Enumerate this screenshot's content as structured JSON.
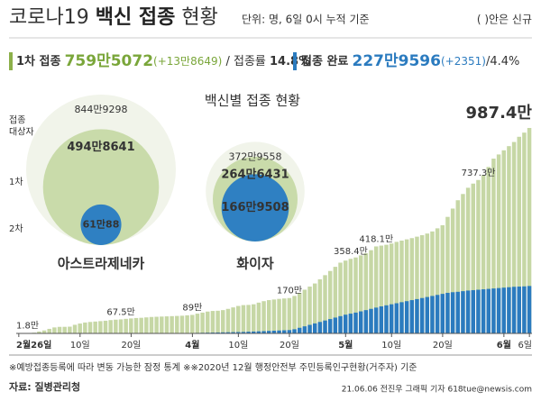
{
  "header": {
    "title": [
      "코로나19",
      "백신 접종",
      "현황"
    ],
    "unit": "단위: 명, 6일 0시 누적 기준",
    "note": "( )안은 신규",
    "first": {
      "label": "1차 접종",
      "value": "759만5072",
      "new": "(+13만8649)",
      "rate_label": "/ 접종률",
      "rate": "14.8%"
    },
    "second": {
      "label": "접종 완료",
      "value": "227만9596",
      "new": "(+2351)",
      "rate": "/4.4%"
    }
  },
  "bubbles": {
    "title": "백신별 접종 현황",
    "row_labels": [
      [
        "접종",
        "대상자"
      ],
      [
        "1차"
      ],
      [
        "2차"
      ]
    ],
    "colors": [
      "#f1f4ea",
      "#c9dbaa",
      "#2f80c2"
    ],
    "vaccines": [
      {
        "name": "아스트라제네카",
        "values": [
          8449298,
          4948641,
          610088
        ],
        "value_labels": [
          "844만9298",
          "494만8641",
          "61만88"
        ]
      },
      {
        "name": "화이자",
        "values": [
          3729558,
          2646431,
          1669508
        ],
        "value_labels": [
          "372만9558",
          "264만6431",
          "166만9508"
        ]
      }
    ]
  },
  "chart_data": {
    "type": "bar",
    "categories": [
      "2월26일",
      null,
      null,
      null,
      null,
      null,
      null,
      null,
      null,
      null,
      null,
      null,
      "10일",
      null,
      null,
      null,
      null,
      null,
      null,
      null,
      null,
      null,
      "20일",
      null,
      null,
      null,
      null,
      null,
      null,
      null,
      null,
      null,
      null,
      null,
      "4월",
      null,
      null,
      null,
      null,
      null,
      null,
      null,
      null,
      "10일",
      null,
      null,
      null,
      null,
      null,
      null,
      null,
      null,
      null,
      "20일",
      null,
      null,
      null,
      null,
      null,
      null,
      null,
      null,
      null,
      null,
      "5월",
      null,
      null,
      null,
      null,
      null,
      null,
      null,
      null,
      "10일",
      null,
      null,
      null,
      null,
      null,
      null,
      null,
      null,
      null,
      "20일",
      null,
      null,
      null,
      null,
      null,
      null,
      null,
      null,
      null,
      null,
      null,
      "6월",
      null,
      null,
      null,
      null,
      "6일"
    ],
    "series": [
      {
        "color": "#c6d7a5",
        "values": [
          1.8,
          2.1,
          2.2,
          3.5,
          9.1,
          14.3,
          21.9,
          28.8,
          31.5,
          31.6,
          32.4,
          41.4,
          47.4,
          52.4,
          55,
          57,
          59,
          61,
          64,
          66,
          67.5,
          70,
          72,
          74,
          75,
          77,
          79,
          80,
          81,
          82,
          83,
          84,
          85,
          87,
          89,
          95,
          100,
          105,
          108,
          109,
          112,
          118,
          125,
          132,
          136,
          137,
          140,
          148,
          155,
          160,
          163,
          166,
          168,
          170,
          180,
          195,
          210,
          225,
          240,
          260,
          280,
          300,
          320,
          340,
          350,
          358.4,
          365,
          375,
          385,
          400,
          418.1,
          422,
          426,
          432,
          440,
          446,
          452,
          458,
          465,
          472,
          480,
          490,
          505,
          520,
          560,
          600,
          640,
          670,
          700,
          720,
          737.3,
          760,
          800,
          840,
          860,
          880,
          900,
          920,
          945,
          965,
          987.4
        ],
        "value_labels": [
          "1.8만",
          null,
          null,
          null,
          null,
          null,
          null,
          null,
          null,
          null,
          null,
          null,
          null,
          null,
          null,
          null,
          null,
          null,
          null,
          null,
          "67.5만",
          null,
          null,
          null,
          null,
          null,
          null,
          null,
          null,
          null,
          null,
          null,
          null,
          null,
          "89만",
          null,
          null,
          null,
          null,
          null,
          null,
          null,
          null,
          null,
          null,
          null,
          null,
          null,
          null,
          null,
          null,
          null,
          null,
          "170만",
          null,
          null,
          null,
          null,
          null,
          null,
          null,
          null,
          null,
          null,
          null,
          "358.4만",
          null,
          null,
          null,
          null,
          "418.1만",
          null,
          null,
          null,
          null,
          null,
          null,
          null,
          null,
          null,
          null,
          null,
          null,
          null,
          null,
          null,
          null,
          null,
          null,
          null,
          "737.3만",
          null,
          null,
          null,
          null,
          null,
          null,
          null,
          null,
          null,
          "987.4만"
        ]
      },
      {
        "color": "#2b7bbf",
        "values": [
          0,
          0,
          0,
          0,
          0,
          0,
          0,
          0,
          0,
          0,
          0,
          0,
          0,
          0,
          0,
          0,
          0,
          0,
          0,
          0.1,
          0.2,
          0.3,
          0.4,
          0.5,
          0.6,
          0.7,
          0.8,
          0.9,
          1,
          1.1,
          1.2,
          1.3,
          1.4,
          1.5,
          2,
          2.5,
          3,
          3.5,
          4,
          4.5,
          5,
          5.5,
          6,
          6.5,
          7,
          8,
          9,
          10,
          11,
          12,
          13,
          14,
          15,
          16,
          20,
          27,
          34,
          41,
          48,
          55,
          62,
          69,
          76,
          83,
          90,
          95,
          100,
          106,
          112,
          118,
          124,
          130,
          135,
          140,
          145,
          150,
          155,
          160,
          165,
          170,
          175,
          180,
          185,
          190,
          195,
          198,
          200,
          203,
          206,
          208,
          210,
          212,
          214,
          216,
          218,
          220,
          222,
          224,
          225,
          226,
          227.9
        ]
      }
    ]
  },
  "footer": {
    "notes": [
      "※예방접종등록에 따라 변동 가능한 잠정 통계",
      "※※2020년 12월 행정안전부 주민등록인구현황(거주자) 기준"
    ],
    "source": "자료: 질병관리청",
    "credit": "21.06.06 전진우 그래픽 기자 618tue@newsis.com"
  }
}
